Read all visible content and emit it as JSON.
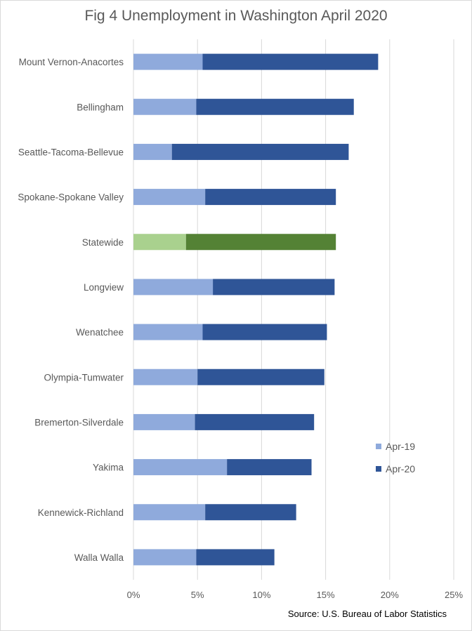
{
  "chart_data": {
    "type": "bar",
    "orientation": "horizontal",
    "stacked": true,
    "title": "Fig 4 Unemployment in Washington  April 2020",
    "source": "Source: U.S. Bureau of Labor Statistics",
    "categories": [
      "Mount Vernon-Anacortes",
      "Bellingham",
      "Seattle-Tacoma-Bellevue",
      "Spokane-Spokane Valley",
      "Statewide",
      "Longview",
      "Wenatchee",
      "Olympia-Tumwater",
      "Bremerton-Silverdale",
      "Yakima",
      "Kennewick-Richland",
      "Walla Walla"
    ],
    "series": [
      {
        "name": "Apr-19",
        "color": "#8faadc",
        "values": [
          5.4,
          4.9,
          3.0,
          5.6,
          4.1,
          6.2,
          5.4,
          5.0,
          4.8,
          7.3,
          5.6,
          4.9
        ]
      },
      {
        "name": "Apr-20",
        "color": "#2f5597",
        "values": [
          13.7,
          12.3,
          13.8,
          10.2,
          11.7,
          9.5,
          9.7,
          9.9,
          9.3,
          6.6,
          7.1,
          6.1
        ]
      }
    ],
    "highlight": {
      "category": "Statewide",
      "colors": [
        "#a9d18e",
        "#548235"
      ]
    },
    "xlim": [
      0,
      25
    ],
    "xticks": [
      "0%",
      "5%",
      "10%",
      "15%",
      "20%",
      "25%"
    ],
    "grid": true,
    "legend_position": "right"
  }
}
